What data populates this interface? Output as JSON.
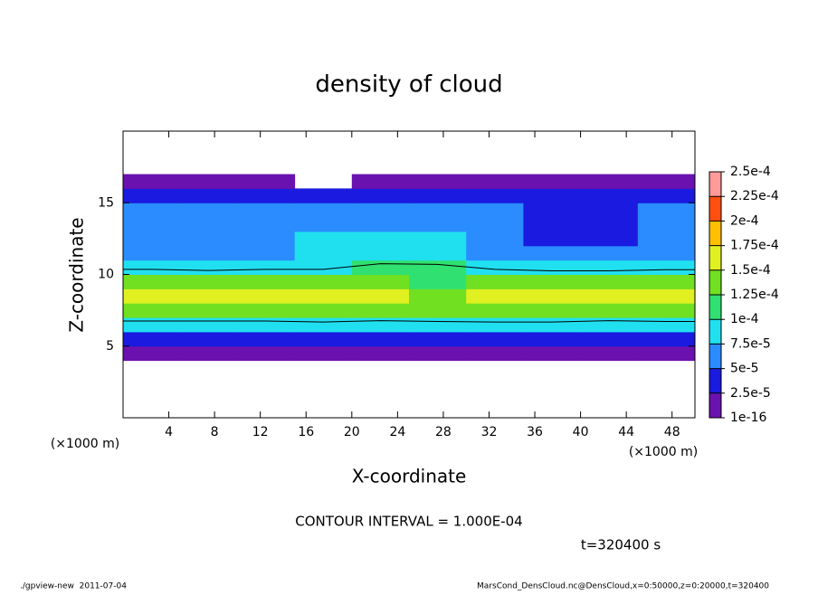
{
  "chart_data": {
    "type": "contour",
    "title": "density of cloud",
    "xlabel": "X-coordinate",
    "ylabel": "Z-coordinate",
    "xunit": "(×1000 m)",
    "yunit": "(×1000 m)",
    "contour_label": "CONTOUR INTERVAL = 1.000E-04",
    "time_label": "t=320400 s",
    "footer_left": "./gpview-new  2011-07-04",
    "footer_right": "MarsCond_DensCloud.nc@DensCloud,x=0:50000,z=0:20000,t=320400",
    "xlim": [
      0,
      50
    ],
    "ylim": [
      0,
      20
    ],
    "xticks": [
      4,
      8,
      12,
      16,
      20,
      24,
      28,
      32,
      36,
      40,
      44,
      48
    ],
    "yticks": [
      5,
      10,
      15
    ],
    "xbins": [
      0,
      5,
      10,
      15,
      20,
      25,
      30,
      35,
      40,
      45,
      50
    ],
    "zbins": [
      0,
      1,
      2,
      3,
      4,
      5,
      6,
      7,
      8,
      9,
      10,
      11,
      12,
      13,
      14,
      15,
      16,
      17,
      18,
      19,
      20
    ],
    "values": [
      [
        0,
        0,
        0,
        0,
        0,
        0,
        0,
        0,
        0,
        0
      ],
      [
        0,
        0,
        0,
        0,
        0,
        0,
        0,
        0,
        0,
        0
      ],
      [
        0,
        0,
        0,
        0,
        0,
        0,
        0,
        0,
        0,
        0
      ],
      [
        0,
        0,
        0,
        0,
        0,
        0,
        0,
        0,
        0,
        0
      ],
      [
        1e-05,
        1e-05,
        1e-05,
        1e-05,
        1e-05,
        1e-05,
        1e-05,
        1e-05,
        1e-05,
        1e-05
      ],
      [
        4e-05,
        4e-05,
        4e-05,
        4e-05,
        3e-05,
        3e-05,
        4e-05,
        4e-05,
        4e-05,
        4e-05
      ],
      [
        9e-05,
        9e-05,
        8.5e-05,
        9e-05,
        8.5e-05,
        9e-05,
        9e-05,
        9e-05,
        8.5e-05,
        9e-05
      ],
      [
        0.00013,
        0.00013,
        0.000145,
        0.000145,
        0.00014,
        0.000135,
        0.000145,
        0.000145,
        0.00014,
        0.000135
      ],
      [
        0.00015,
        0.00016,
        0.000155,
        0.00016,
        0.00015,
        0.000145,
        0.000155,
        0.000155,
        0.00016,
        0.00015
      ],
      [
        0.00013,
        0.000135,
        0.00013,
        0.00013,
        0.000125,
        0.00012,
        0.00013,
        0.00013,
        0.00013,
        0.000125
      ],
      [
        9.5e-05,
        9e-05,
        9.5e-05,
        9.5e-05,
        0.000105,
        0.000105,
        9.5e-05,
        9e-05,
        9e-05,
        9.5e-05
      ],
      [
        7e-05,
        7e-05,
        7e-05,
        8e-05,
        8.5e-05,
        8e-05,
        7e-05,
        6.5e-05,
        6.5e-05,
        7e-05
      ],
      [
        6e-05,
        6e-05,
        6.5e-05,
        8e-05,
        8e-05,
        7.5e-05,
        6e-05,
        4.5e-05,
        4e-05,
        6e-05
      ],
      [
        5.5e-05,
        5.5e-05,
        6e-05,
        7e-05,
        7e-05,
        6.5e-05,
        5.5e-05,
        4e-05,
        4e-05,
        5.5e-05
      ],
      [
        5.5e-05,
        5.5e-05,
        5.5e-05,
        6e-05,
        6e-05,
        6e-05,
        5.5e-05,
        4.5e-05,
        4e-05,
        5e-05
      ],
      [
        3e-05,
        3e-05,
        3e-05,
        3e-05,
        3e-05,
        3e-05,
        3e-05,
        3e-05,
        3e-05,
        3e-05
      ],
      [
        1e-05,
        1e-05,
        1e-05,
        0,
        1e-05,
        1e-05,
        1e-05,
        1e-05,
        1e-05,
        1e-05
      ],
      [
        0,
        0,
        0,
        0,
        0,
        0,
        0,
        0,
        0,
        0
      ],
      [
        0,
        0,
        0,
        0,
        0,
        0,
        0,
        0,
        0,
        0
      ],
      [
        0,
        0,
        0,
        0,
        0,
        0,
        0,
        0,
        0,
        0
      ]
    ],
    "contour_levels": [
      0.0001
    ],
    "levels": [
      1e-16,
      {
        "value": 2.5e-05,
        "label": "2.5e-5"
      },
      {
        "value": 5e-05,
        "label": "5e-5"
      },
      {
        "value": 7.5e-05,
        "label": "7.5e-5"
      },
      {
        "value": 0.0001,
        "label": "1e-4"
      },
      {
        "value": 0.000125,
        "label": "1.25e-4"
      },
      {
        "value": 0.00015,
        "label": "1.5e-4"
      },
      {
        "value": 0.000175,
        "label": "1.75e-4"
      },
      {
        "value": 0.0002,
        "label": "2e-4"
      },
      {
        "value": 0.000225,
        "label": "2.25e-4"
      },
      {
        "value": 0.00025,
        "label": "2.5e-4"
      }
    ],
    "colors": [
      "#6a12b0",
      "#1a1ae0",
      "#2a8cff",
      "#20e0f0",
      "#30e070",
      "#70e020",
      "#e0f020",
      "#ffc000",
      "#ff5010",
      "#ff9a9a"
    ]
  }
}
